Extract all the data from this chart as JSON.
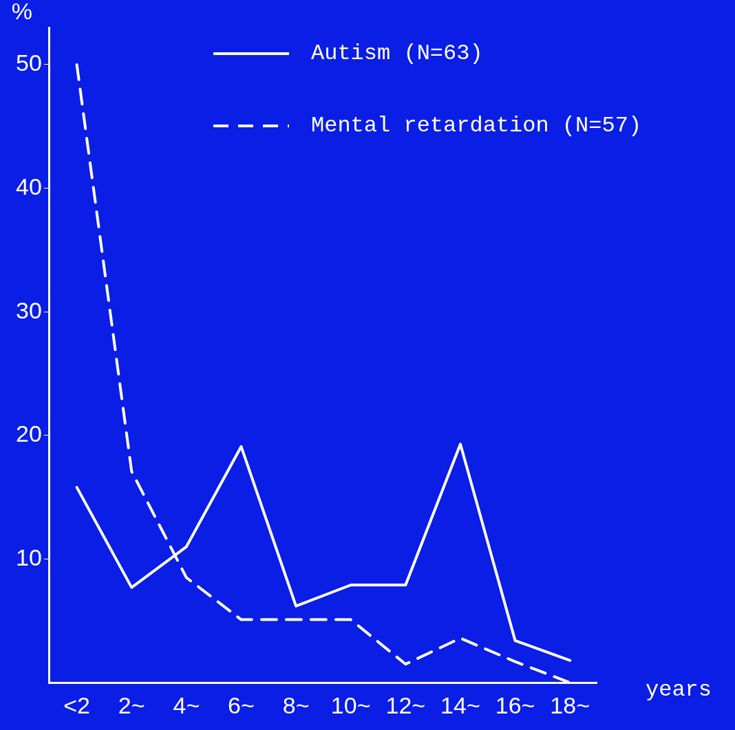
{
  "chart_data": {
    "type": "line",
    "xlabel": "years",
    "ylabel": "%",
    "categories": [
      "<2",
      "2~",
      "4~",
      "6~",
      "8~",
      "10~",
      "12~",
      "14~",
      "16~",
      "18~"
    ],
    "series": [
      {
        "name": "Autism (N=63)",
        "color": "#ffffff",
        "line_style": "solid",
        "values": [
          15.8,
          7.7,
          11.0,
          19.1,
          6.2,
          7.9,
          7.9,
          19.3,
          3.4,
          1.8
        ]
      },
      {
        "name": "Mental retardation (N=57)",
        "color": "#ffffff",
        "line_style": "dashed",
        "values": [
          50,
          17.1,
          8.5,
          5.1,
          5.1,
          5.1,
          1.5,
          3.6,
          1.7,
          0
        ]
      }
    ],
    "ylim": [
      0,
      53
    ],
    "yticks": [
      10,
      20,
      30,
      40,
      50
    ],
    "grid": false,
    "legend": "top right",
    "marker": "none"
  }
}
